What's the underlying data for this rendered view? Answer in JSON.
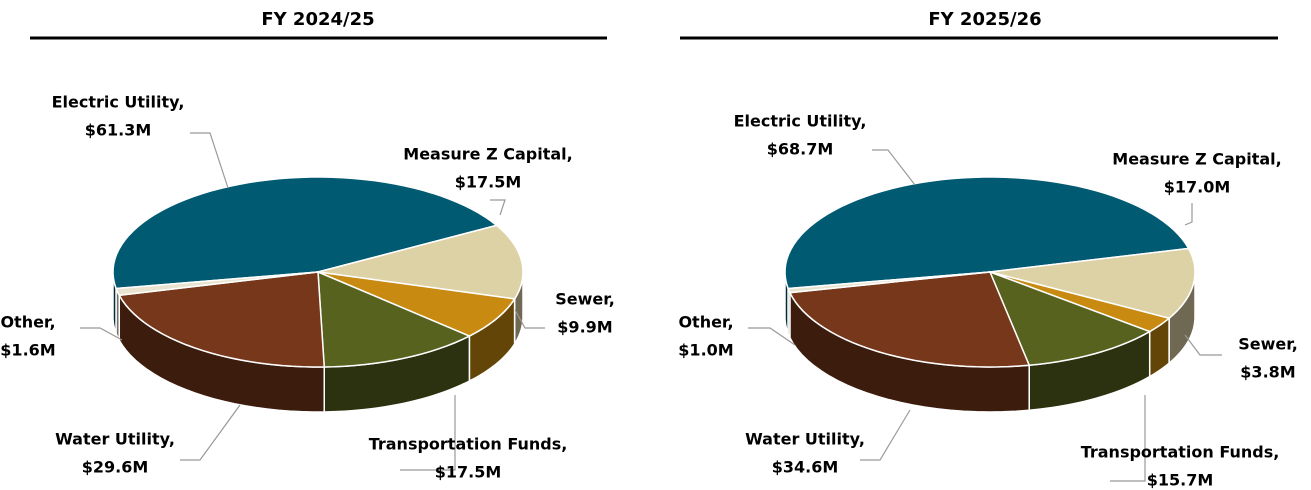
{
  "chart_data": [
    {
      "type": "pie3d",
      "title": "FY 2024/25",
      "categories": [
        "Electric Utility,",
        "Measure Z Capital,",
        "Sewer,",
        "Transportation Funds,",
        "Water Utility,",
        "Other,"
      ],
      "values": [
        61.3,
        17.5,
        9.9,
        17.5,
        29.6,
        1.6
      ],
      "value_labels": [
        "$61.3M",
        "$17.5M",
        "$9.9M",
        "$17.5M",
        "$29.6M",
        "$1.6M"
      ],
      "colors": [
        "#005a72",
        "#ddd1a6",
        "#c88a10",
        "#58621f",
        "#76371a",
        "#e8e4d0"
      ]
    },
    {
      "type": "pie3d",
      "title": "FY 2025/26",
      "categories": [
        "Electric Utility,",
        "Measure Z Capital,",
        "Sewer,",
        "Transportation Funds,",
        "Water Utility,",
        "Other,"
      ],
      "values": [
        68.7,
        17.0,
        3.8,
        15.7,
        34.6,
        1.0
      ],
      "value_labels": [
        "$68.7M",
        "$17.0M",
        "$3.8M",
        "$15.7M",
        "$34.6M",
        "$1.0M"
      ],
      "colors": [
        "#005a72",
        "#ddd1a6",
        "#c88a10",
        "#58621f",
        "#76371a",
        "#e8e4d0"
      ]
    }
  ]
}
